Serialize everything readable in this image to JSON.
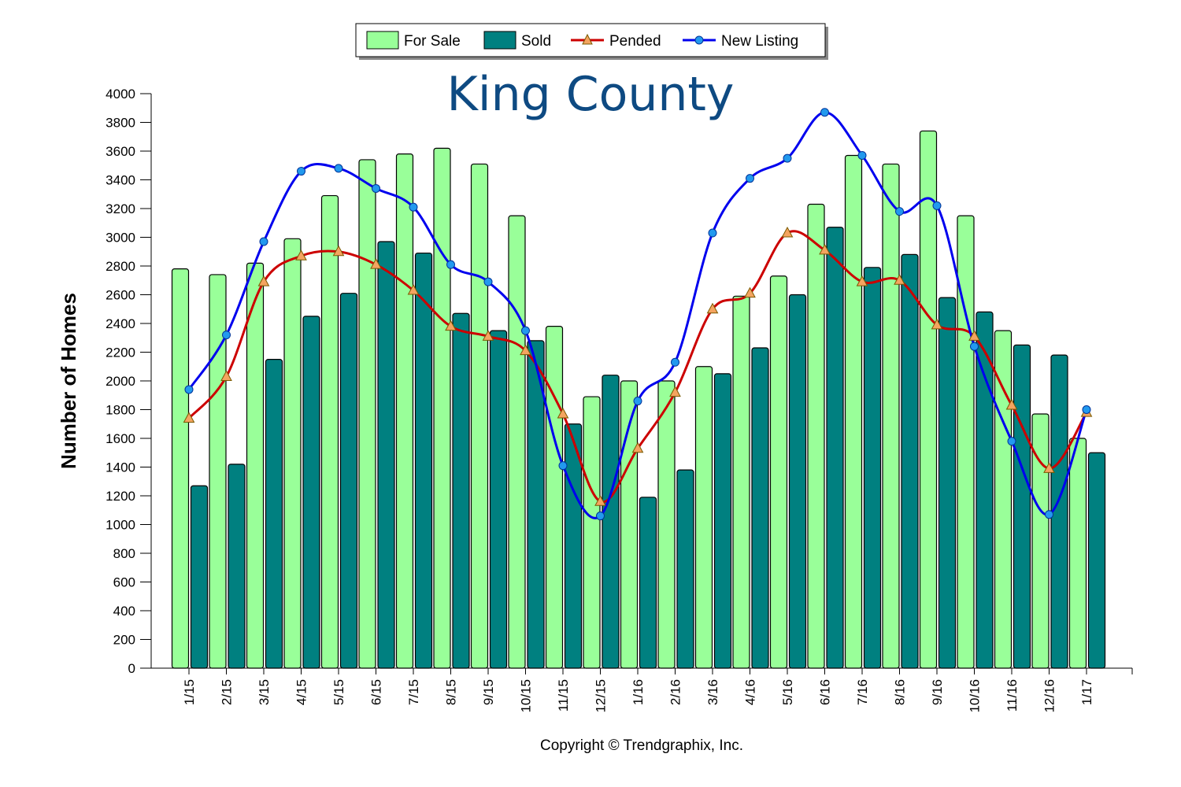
{
  "chart_data": {
    "type": "bar",
    "title": "King County",
    "xlabel": "",
    "ylabel": "Number of Homes",
    "ylim": [
      0,
      4000
    ],
    "yticks": [
      0,
      200,
      400,
      600,
      800,
      1000,
      1200,
      1400,
      1600,
      1800,
      2000,
      2200,
      2400,
      2600,
      2800,
      3000,
      3200,
      3400,
      3600,
      3800,
      4000
    ],
    "grid": false,
    "legend_position": "top-center",
    "categories": [
      "1/15",
      "2/15",
      "3/15",
      "4/15",
      "5/15",
      "6/15",
      "7/15",
      "8/15",
      "9/15",
      "10/15",
      "11/15",
      "12/15",
      "1/16",
      "2/16",
      "3/16",
      "4/16",
      "5/16",
      "6/16",
      "7/16",
      "8/16",
      "9/16",
      "10/16",
      "11/16",
      "12/16",
      "1/17"
    ],
    "series": [
      {
        "name": "For Sale",
        "kind": "bar",
        "color": "#99ff99",
        "values": [
          2780,
          2740,
          2820,
          2990,
          3290,
          3540,
          3580,
          3620,
          3510,
          3150,
          2380,
          1890,
          2000,
          2000,
          2100,
          2590,
          2730,
          3230,
          3570,
          3510,
          3740,
          3150,
          2350,
          1770,
          1600
        ]
      },
      {
        "name": "Sold",
        "kind": "bar",
        "color": "#008080",
        "values": [
          1270,
          1420,
          2150,
          2450,
          2610,
          2970,
          2890,
          2470,
          2350,
          2280,
          1700,
          2040,
          1190,
          1380,
          2050,
          2230,
          2600,
          3070,
          2790,
          2880,
          2580,
          2480,
          2250,
          2180,
          1500
        ]
      },
      {
        "name": "Pended",
        "kind": "line",
        "color": "#cc0000",
        "marker_color": "#f4a460",
        "marker": "triangle",
        "values": [
          1740,
          2030,
          2690,
          2870,
          2900,
          2810,
          2630,
          2380,
          2310,
          2210,
          1770,
          1160,
          1530,
          1920,
          2500,
          2610,
          3030,
          2910,
          2690,
          2700,
          2390,
          2310,
          1830,
          1390,
          1780
        ]
      },
      {
        "name": "New Listing",
        "kind": "line",
        "color": "#0000ee",
        "marker_color": "#2299ee",
        "marker": "circle",
        "values": [
          1940,
          2320,
          2970,
          3460,
          3480,
          3340,
          3210,
          2810,
          2690,
          2350,
          1410,
          1060,
          1860,
          2130,
          3030,
          3410,
          3550,
          3870,
          3570,
          3180,
          3220,
          2240,
          1580,
          1070,
          1800
        ]
      }
    ],
    "annotations": [
      "Copyright © Trendgraphix, Inc."
    ]
  }
}
